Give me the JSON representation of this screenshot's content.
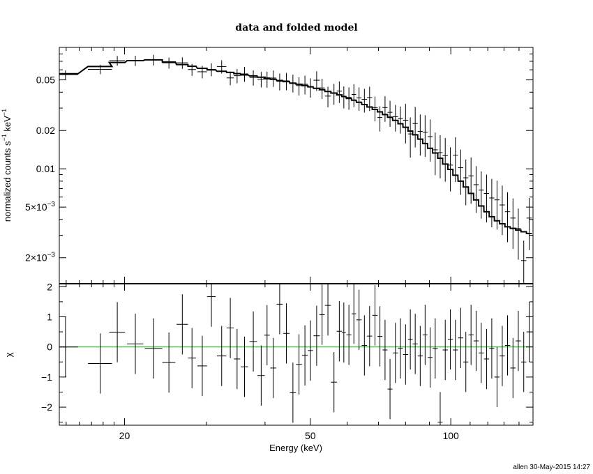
{
  "chart_data": {
    "type": "scatter",
    "title": "data and folded model",
    "credit": "allen 30-May-2015 14:27",
    "xlabel": "Energy (keV)",
    "x_scale": "log",
    "xlim": [
      14.5,
      150
    ],
    "x_ticks": [
      {
        "value": 20,
        "label": "20"
      },
      {
        "value": 50,
        "label": "50"
      },
      {
        "value": 100,
        "label": "100"
      }
    ],
    "panels": [
      {
        "name": "spectrum",
        "ylabel_main": "normalized counts s",
        "ylabel_sup1": "−1",
        "ylabel_mid": " keV",
        "ylabel_sup2": "−1",
        "y_scale": "log",
        "ylim": [
          0.00125,
          0.09
        ],
        "y_ticks": [
          {
            "value": 0.05,
            "label": "0.05"
          },
          {
            "value": 0.02,
            "label": "0.02"
          },
          {
            "value": 0.01,
            "label": "0.01"
          },
          {
            "value": 0.005,
            "label": "5×10",
            "sup": "−3"
          },
          {
            "value": 0.002,
            "label": "2×10",
            "sup": "−3"
          }
        ],
        "data_x": [
          14.95,
          17.75,
          19.3,
          21.1,
          23.1,
          24.9,
          26.6,
          27.9,
          29.35,
          30.7,
          32.3,
          33.7,
          34.85,
          36.15,
          37.75,
          39.25,
          40.4,
          41.65,
          43.0,
          44.45,
          45.9,
          47.3,
          48.7,
          50.05,
          51.6,
          53.0,
          54.55,
          56.2,
          57.7,
          59.0,
          60.5,
          62.0,
          63.6,
          65.3,
          67.0,
          68.8,
          70.5,
          72.3,
          74.1,
          76.1,
          78.0,
          80.0,
          81.9,
          83.9,
          86.0,
          88.1,
          90.3,
          92.6,
          94.9,
          97.3,
          99.8,
          102.3,
          105.0,
          107.7,
          110.5,
          113.3,
          116.2,
          119.3,
          122.4,
          125.6,
          128.9,
          132.3,
          135.9,
          139.5,
          143.3,
          147.2
        ],
        "x_halfwidth": [
          0.95,
          1.05,
          0.75,
          0.85,
          1.0,
          0.8,
          0.75,
          0.55,
          0.7,
          0.65,
          0.75,
          0.6,
          0.55,
          0.65,
          0.7,
          0.7,
          0.55,
          0.6,
          0.65,
          0.7,
          0.7,
          0.7,
          0.7,
          0.65,
          0.8,
          0.7,
          0.8,
          0.85,
          0.75,
          0.6,
          0.75,
          0.7,
          0.8,
          0.85,
          0.85,
          0.9,
          0.85,
          0.9,
          0.9,
          1.0,
          0.95,
          1.0,
          0.95,
          1.05,
          1.05,
          1.05,
          1.1,
          1.2,
          1.15,
          1.25,
          1.25,
          1.25,
          1.35,
          1.35,
          1.4,
          1.4,
          1.5,
          1.55,
          1.55,
          1.6,
          1.7,
          1.7,
          1.8,
          1.8,
          1.9,
          1.95
        ],
        "data_y": [
          0.055,
          0.0605,
          0.0708,
          0.0708,
          0.0718,
          0.0681,
          0.0681,
          0.0603,
          0.0579,
          0.0605,
          0.0637,
          0.0518,
          0.0539,
          0.0557,
          0.0522,
          0.0507,
          0.0507,
          0.0517,
          0.0487,
          0.0491,
          0.0474,
          0.0451,
          0.0462,
          0.0438,
          0.0497,
          0.0432,
          0.0373,
          0.0392,
          0.0408,
          0.0371,
          0.0364,
          0.0384,
          0.0361,
          0.0351,
          0.0363,
          0.0303,
          0.0253,
          0.0303,
          0.0278,
          0.0257,
          0.0249,
          0.0241,
          0.0188,
          0.0227,
          0.0197,
          0.0194,
          0.0179,
          0.0141,
          0.0134,
          0.0127,
          0.0107,
          0.0128,
          0.0102,
          0.0085,
          0.0088,
          0.0075,
          0.0068,
          0.0064,
          0.0059,
          0.0057,
          0.0052,
          0.0046,
          0.0041,
          0.0034,
          0.0019,
          0.0041
        ],
        "model_y": [
          0.0559,
          0.0637,
          0.0685,
          0.0708,
          0.0718,
          0.069,
          0.066,
          0.064,
          0.0616,
          0.0599,
          0.0584,
          0.0572,
          0.056,
          0.0547,
          0.0537,
          0.0525,
          0.0516,
          0.0505,
          0.0494,
          0.0484,
          0.0471,
          0.0462,
          0.0451,
          0.0441,
          0.0429,
          0.0418,
          0.0405,
          0.0394,
          0.0381,
          0.037,
          0.0357,
          0.0346,
          0.0333,
          0.032,
          0.0306,
          0.0293,
          0.028,
          0.0267,
          0.0254,
          0.024,
          0.0226,
          0.0212,
          0.0198,
          0.0185,
          0.0171,
          0.0158,
          0.0145,
          0.0133,
          0.0121,
          0.0109,
          0.0099,
          0.0089,
          0.008,
          0.0072,
          0.0064,
          0.0057,
          0.0051,
          0.0046,
          0.0042,
          0.0039,
          0.0037,
          0.0035,
          0.0034,
          0.0033,
          0.0032,
          0.0031
        ]
      },
      {
        "name": "residuals",
        "ylabel": "χ",
        "y_scale": "linear",
        "ylim": [
          -2.6,
          2.1
        ],
        "y_ticks": [
          {
            "value": 2,
            "label": "2"
          },
          {
            "value": 1,
            "label": "1"
          },
          {
            "value": 0,
            "label": "0"
          },
          {
            "value": -1,
            "label": "−1"
          },
          {
            "value": -2,
            "label": "−2"
          }
        ],
        "zero_line_color": "#00c000",
        "chi": [
          0.0,
          -0.55,
          0.49,
          0.1,
          -0.05,
          -0.52,
          0.75,
          -0.37,
          -0.63,
          1.67,
          -0.3,
          0.63,
          -0.4,
          -0.66,
          0.18,
          -0.95,
          0.39,
          -0.7,
          1.42,
          0.45,
          -1.52,
          -0.58,
          -0.28,
          -0.12,
          0.37,
          1.07,
          1.38,
          -1.17,
          0.52,
          0.48,
          0.4,
          1.1,
          0.9,
          0.05,
          0.36,
          1.05,
          0.35,
          -0.1,
          -1.4,
          -0.2,
          -0.05,
          -0.25,
          0.25,
          0.1,
          -0.3,
          0.4,
          -0.35,
          -0.05,
          -2.5,
          -0.1,
          0.25,
          -0.1,
          0.3,
          -0.5,
          0.4,
          0.2,
          -0.2,
          -0.4,
          -0.05,
          -1.0,
          -0.3,
          0.05,
          -0.7,
          0.2,
          -0.5,
          0.5
        ]
      }
    ],
    "data_color": "#000000"
  }
}
